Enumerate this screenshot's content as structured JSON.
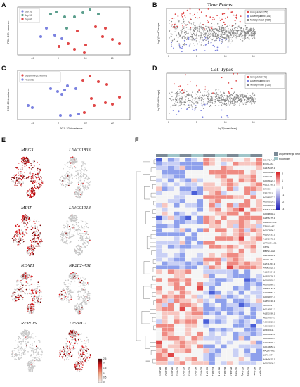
{
  "figure": {
    "panel_labels": [
      "A",
      "B",
      "C",
      "D",
      "E",
      "F"
    ]
  },
  "panel_a": {
    "label": "A",
    "legend": [
      "Day 16",
      "Day 30",
      "Day 60"
    ],
    "legend_colors": [
      "#7b82e0",
      "#5a9e8c",
      "#e04848"
    ],
    "xlabel": "",
    "ylabel": "PC2: 20% variance",
    "xticks": [
      "-10",
      "0",
      "10",
      "20"
    ],
    "yticks": [
      "0",
      "-5",
      "-10",
      "-15"
    ]
  },
  "panel_b": {
    "label": "B",
    "title": "Time Points",
    "legend": [
      "Upregulated [252]",
      "Downregulated [131]",
      "Not significant [3065]"
    ],
    "legend_colors": [
      "#e04848",
      "#7b82e0",
      "#8a8a8a"
    ],
    "ylabel": "log2(FoldChange)",
    "xticks": [
      "0",
      "5",
      "10",
      "15"
    ]
  },
  "panel_c": {
    "label": "C",
    "legend": [
      "Dopaminergic neurons",
      "Floorplate"
    ],
    "legend_colors": [
      "#e04848",
      "#7b82e0"
    ],
    "xlabel": "PC1: 32% variance",
    "ylabel": "PC2: 20% variance",
    "xticks": [
      "-10",
      "0",
      "10",
      "20"
    ]
  },
  "panel_d": {
    "label": "D",
    "title": "Cell Types",
    "legend": [
      "Upregulated [42]",
      "Downregulated [52]",
      "Not significant [2511]"
    ],
    "legend_colors": [
      "#e04848",
      "#7b82e0",
      "#8a8a8a"
    ],
    "xlabel": "log2(baseMean)",
    "ylabel": "log2(FoldChange)",
    "xticks": [
      "0",
      "5",
      "10",
      "15"
    ]
  },
  "panel_e": {
    "label": "E",
    "genes": [
      "MEG3",
      "LINC01833",
      "MIAT",
      "LINC01918",
      "NEAT1",
      "NR2F2-AS1",
      "RFPL1S",
      "TP53TG1"
    ],
    "colorbar_ticks": [
      "0",
      "0.5",
      "1",
      "1.5",
      "2",
      "2.5"
    ]
  },
  "panel_f": {
    "label": "F",
    "legend": [
      "Dopaminergic neurons",
      "Floorplate"
    ],
    "legend_colors": [
      "#7b8a96",
      "#9fc5c9"
    ],
    "scale_ticks": [
      "2",
      "1",
      "0",
      "-1",
      "-2",
      "-3"
    ],
    "rows": [
      "SOAT2-AS1",
      "IQCH-AS1",
      "AL445465.1",
      "AC022898.1",
      "CCDC39",
      "AC026124.1",
      "AL121790.1",
      "SNHG8",
      "TP53TG1",
      "AC005077.2",
      "AC010226.1",
      "AC006435.1",
      "FAM111A-DT",
      "AC008008.2",
      "AL356475.1",
      "URB2K1-AS1",
      "TENM3-AS1",
      "AC073896.2",
      "AL162431.1",
      "AL392172.1",
      "LRRN39-AS1",
      "C8HG",
      "RBPS1-AS1",
      "AL358832.1",
      "OTX2-AS1",
      "AL731357.1",
      "AP002525.1",
      "AL139424.3",
      "AL390726.1",
      "AC092803.2",
      "AC010864.1",
      "AP003721.2",
      "AC078761.3",
      "AC092271.1",
      "AL354740.1",
      "SNHG14",
      "AC140912.1",
      "AL353196.1",
      "AC107079.1",
      "AC093028.1",
      "AC006307.1",
      "LINC01111",
      "AC010825.2",
      "AC093305.1",
      "AC083906.4",
      "AC103952.2",
      "PAQR9-AS1",
      "LSR1-DT",
      "AL449425.1",
      "AC022336.2"
    ],
    "columns": [
      "d16-Flr-1",
      "d16-Flr-2",
      "d16-Flr-3",
      "d30-Flr-1",
      "d30-Flr-2",
      "d30-Flr-3",
      "d60-Flr-1",
      "d60-Flr-2",
      "d30-DA-1",
      "d30-DA-2",
      "d60-DA-1",
      "d60-DA-2",
      "d60-DA-3",
      "d16-Early",
      "d30-Early",
      "d60-Early",
      "d60-Late",
      "d60-DA-4"
    ]
  }
}
